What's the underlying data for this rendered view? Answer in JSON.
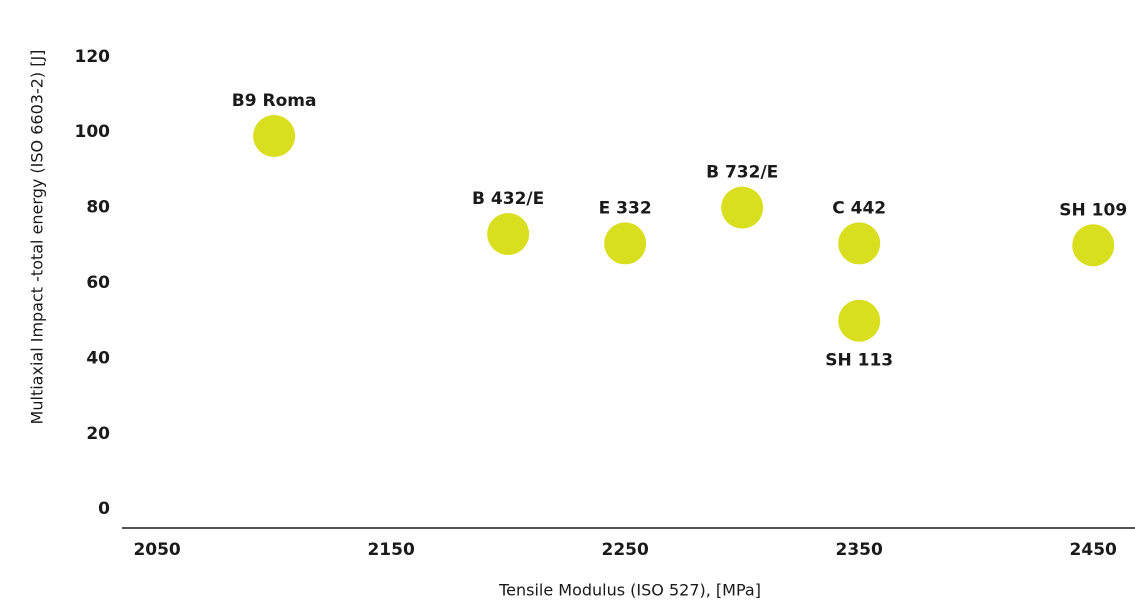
{
  "chart_data": {
    "type": "scatter",
    "xlabel": "Tensile Modulus (ISO 527), [MPa]",
    "ylabel": "Multiaxial Impact -total energy (ISO 6603-2) [J]",
    "series": [
      {
        "color": "#d9df1e",
        "labels": [
          "B9 Roma",
          "B 432/E",
          "E 332",
          "B 732/E",
          "C 442",
          "SH 113",
          "SH 109"
        ],
        "x": [
          2100,
          2200,
          2250,
          2300,
          2350,
          2350,
          2450
        ],
        "values": [
          99,
          73,
          70.5,
          80,
          70.5,
          50,
          70
        ]
      }
    ],
    "xlim": [
      2035,
      2467
    ],
    "xticks": [
      2050,
      2150,
      2250,
      2350,
      2450
    ],
    "ylim": [
      -5,
      125
    ],
    "yticks": [
      0,
      20,
      40,
      60,
      80,
      100,
      120
    ],
    "grid": false
  }
}
